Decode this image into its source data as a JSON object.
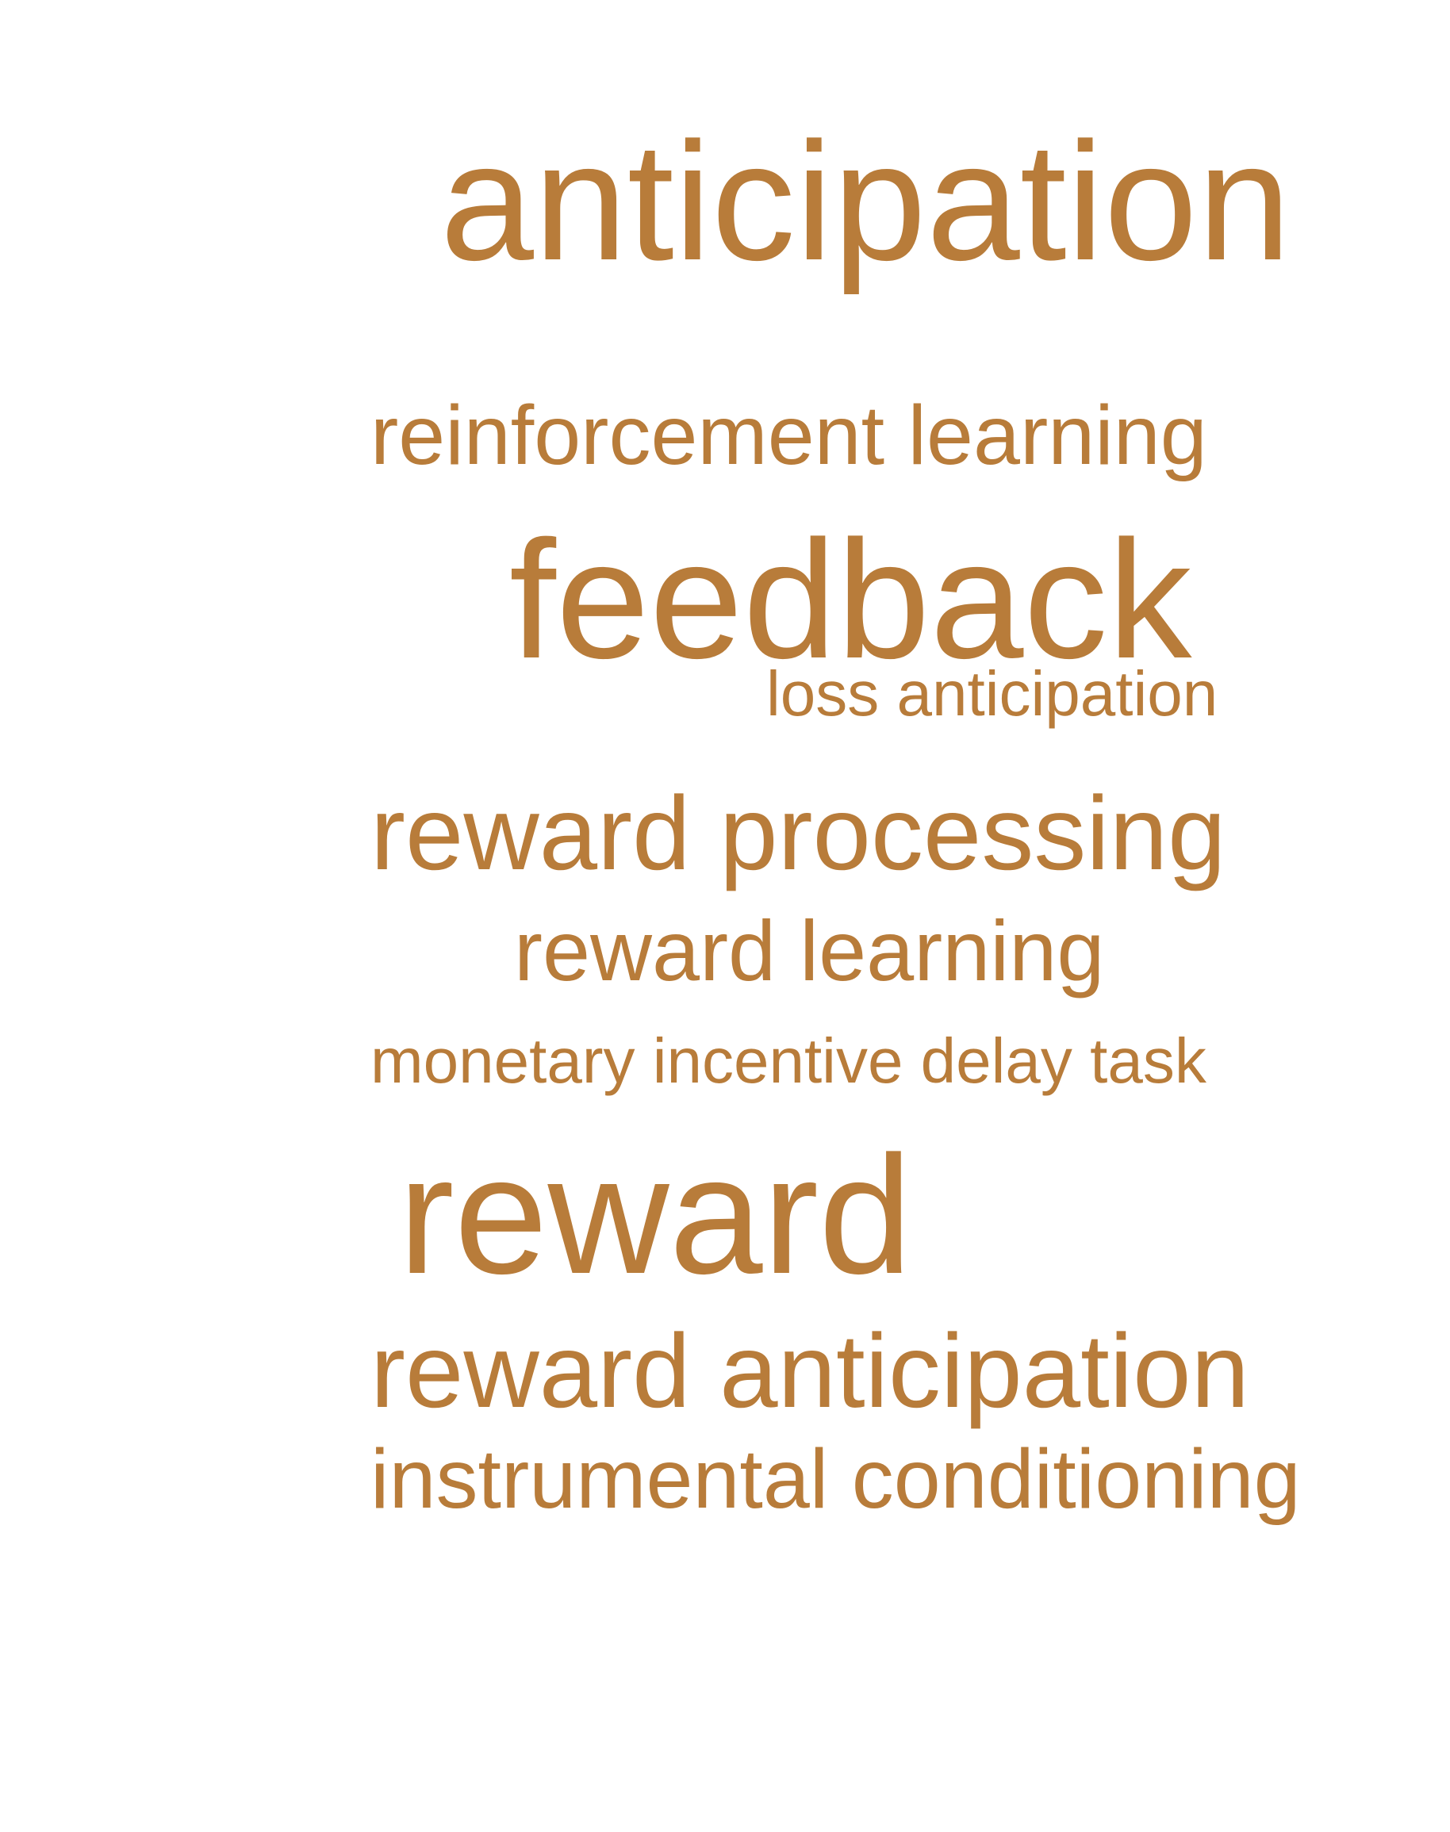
{
  "word_cloud": {
    "color": "#b87c3a",
    "terms": [
      {
        "text": "anticipation"
      },
      {
        "text": "reinforcement learning"
      },
      {
        "text": "feedback"
      },
      {
        "text": "loss anticipation"
      },
      {
        "text": "reward processing"
      },
      {
        "text": "reward learning"
      },
      {
        "text": "monetary incentive delay task"
      },
      {
        "text": "reward"
      },
      {
        "text": "reward anticipation"
      },
      {
        "text": "instrumental conditioning"
      }
    ]
  }
}
